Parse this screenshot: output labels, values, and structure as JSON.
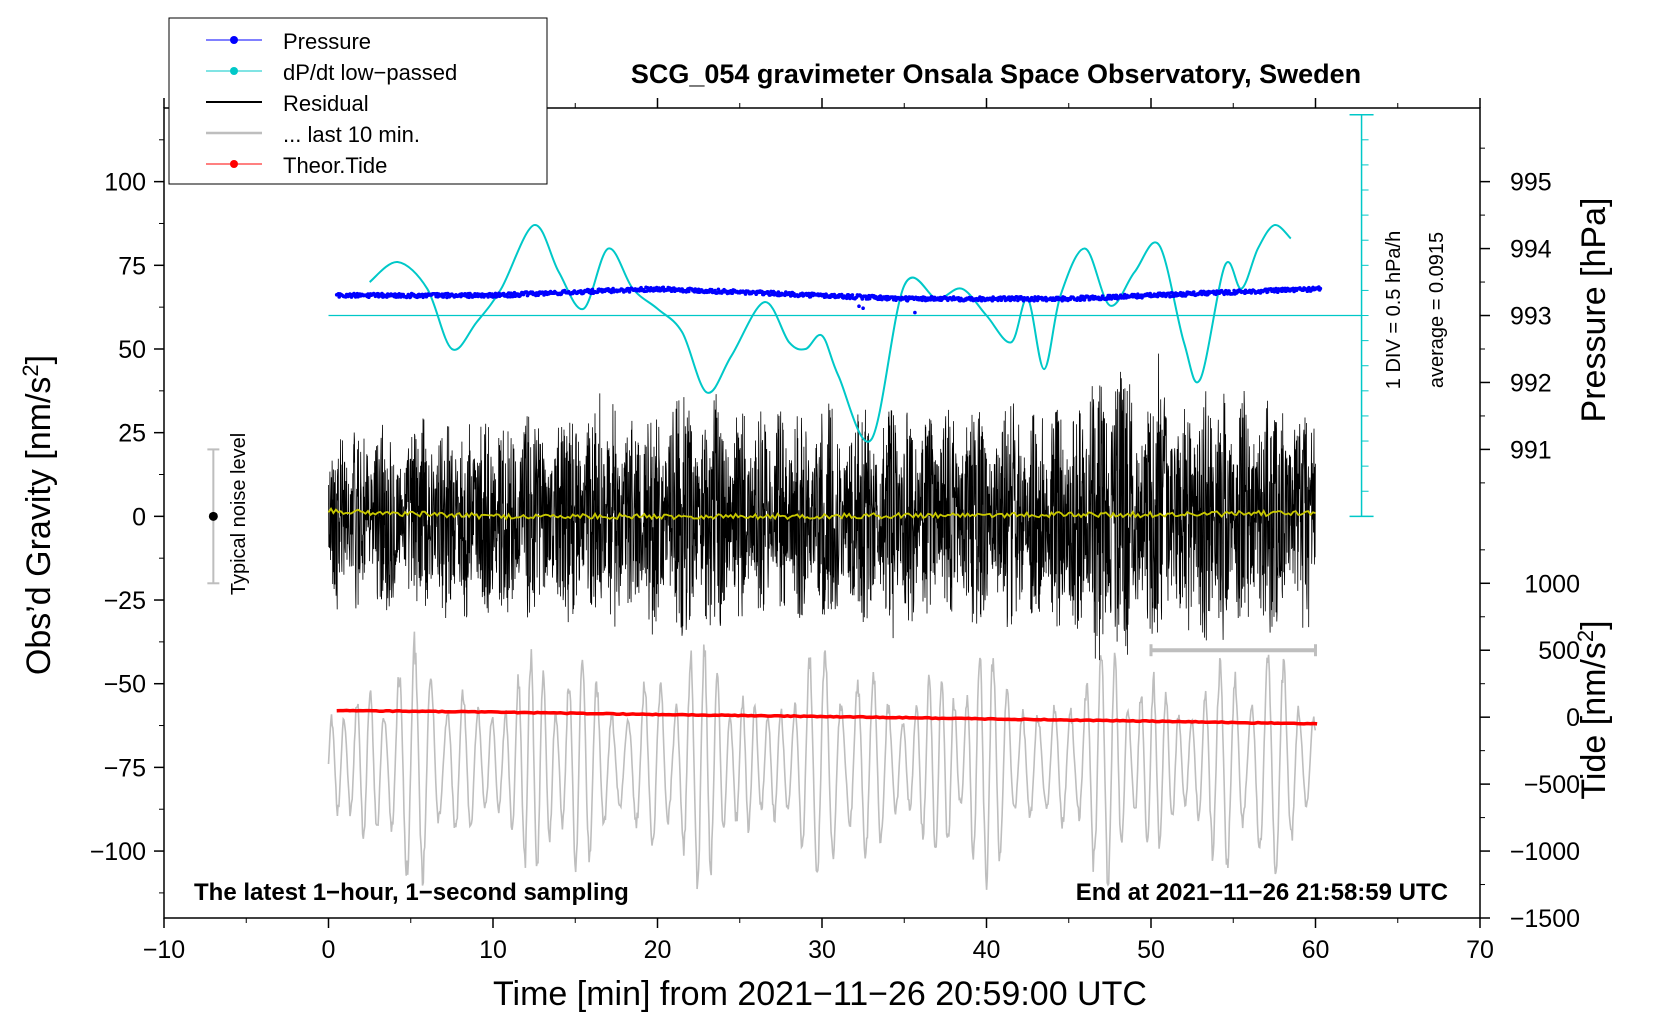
{
  "chart_data": {
    "type": "line",
    "title": "SCG_054 gravimeter Onsala Space Observatory, Sweden",
    "xlabel": "Time [min] from 2021−11−26 20:59:00 UTC",
    "ylabel_left_main": "Obs’d Gravity [nm/s",
    "ylabel_left_sup": "2",
    "ylabel_left_end": "]",
    "ylabel_right_pressure": "Pressure [hPa]",
    "ylabel_right_tide_main": "Tide [nm/s",
    "ylabel_right_tide_sup": "2",
    "ylabel_right_tide_end": "]",
    "xlim": [
      -10,
      70
    ],
    "ylim": [
      -120,
      122
    ],
    "x_ticks": [
      -10,
      0,
      10,
      20,
      30,
      40,
      50,
      60,
      70
    ],
    "x_tick_labels": [
      "−10",
      "0",
      "10",
      "20",
      "30",
      "40",
      "50",
      "60",
      "70"
    ],
    "y_ticks": [
      100,
      75,
      50,
      25,
      0,
      -25,
      -50,
      -75,
      -100
    ],
    "y_tick_labels": [
      "100",
      "75",
      "50",
      "25",
      "0",
      "−25",
      "−50",
      "−75",
      "−100"
    ],
    "pressure_axis": {
      "ticks": [
        995,
        994,
        993,
        992,
        991
      ],
      "tick_labels": [
        "995",
        "994",
        "993",
        "992",
        "991"
      ],
      "range_note": "995 hPa at gravity 100, 991 at gravity 20"
    },
    "tide_axis": {
      "ticks": [
        1000,
        500,
        0,
        -500,
        -1000,
        -1500
      ],
      "tick_labels": [
        "1000",
        "500",
        "0",
        "−500",
        "−1000",
        "−1500"
      ],
      "range_note": "0 nm/s2 at gravity -60, 500 per 20 gravity units"
    },
    "legend": {
      "placement": "top-left",
      "entries": [
        {
          "label": "Pressure",
          "color": "#0000ff",
          "marker": "dot"
        },
        {
          "label": "dP/dt low−passed",
          "color": "#00c8c8",
          "marker": "dot"
        },
        {
          "label": "Residual",
          "color": "#000000",
          "marker": "line"
        },
        {
          "label": "... last 10 min.",
          "color": "#bebebe",
          "marker": "line"
        },
        {
          "label": "Theor.Tide",
          "color": "#ff0000",
          "marker": "dot"
        }
      ]
    },
    "series": [
      {
        "name": "Pressure",
        "color": "#0000ff",
        "x": [
          0.5,
          5,
          10,
          15,
          20,
          25,
          30,
          35,
          40,
          45,
          50,
          55,
          60.3
        ],
        "values": [
          993.3,
          993.3,
          993.3,
          993.35,
          993.4,
          993.35,
          993.3,
          993.25,
          993.25,
          993.25,
          993.3,
          993.35,
          993.4
        ]
      },
      {
        "name": "dP/dt low−passed",
        "color": "#00c8c8",
        "x": [
          2.5,
          4.2,
          6,
          7.5,
          9,
          10.5,
          12.5,
          14,
          15.5,
          17,
          18.5,
          20,
          21.5,
          23,
          24.5,
          26.5,
          28,
          29,
          30,
          31,
          33,
          35,
          37,
          38.5,
          40,
          41.5,
          42.5,
          43.5,
          44.5,
          46,
          47.5,
          49,
          50.5,
          52,
          53,
          54.5,
          55.5,
          56.5,
          57.5,
          58.5
        ],
        "values": [
          70,
          76,
          68,
          50,
          58,
          68,
          87,
          73,
          62,
          80,
          68,
          62,
          55,
          37,
          48,
          64,
          52,
          50,
          54,
          42,
          23,
          69,
          65,
          68,
          60,
          52,
          65,
          44,
          66,
          80,
          63,
          73,
          81,
          52,
          41,
          75,
          68,
          80,
          87,
          83
        ]
      },
      {
        "name": "Residual",
        "color": "#000000",
        "x_range": [
          0,
          60
        ],
        "envelope_x": [
          0,
          5,
          10,
          15,
          20,
          22.5,
          25,
          30,
          35,
          40,
          45,
          47.5,
          50,
          55,
          60
        ],
        "envelope_values": [
          28,
          30,
          32,
          33,
          36,
          40,
          32,
          34,
          33,
          34,
          36,
          50,
          40,
          38,
          35
        ]
      },
      {
        "name": "Residual mean",
        "color": "#c8c800",
        "x": [
          0,
          10,
          20,
          30,
          40,
          50,
          60
        ],
        "values": [
          1.5,
          0,
          0,
          0,
          0.5,
          0.5,
          1
        ]
      },
      {
        "name": "... last 10 min.",
        "color": "#bebebe",
        "x_range": [
          0,
          60
        ],
        "center": -74,
        "amplitude_max": 40
      },
      {
        "name": "Theor.Tide",
        "color": "#ff0000",
        "x": [
          0.5,
          10,
          20,
          30,
          40,
          50,
          60.3
        ],
        "values": [
          -58,
          -58.5,
          -59.2,
          -59.8,
          -60.5,
          -61.2,
          -62
        ]
      }
    ],
    "annotations": {
      "scale_right_1": "1 DIV = 0.5 hPa/h",
      "scale_right_2": "average = 0.0915",
      "noise_label": "Typical noise level",
      "noise_range": [
        -20,
        20
      ],
      "bottom_left": "The latest 1−hour, 1−second sampling",
      "bottom_right": "End at 2021−11−26 21:58:59 UTC",
      "last10_bar": [
        50,
        60
      ]
    },
    "grid": false
  }
}
